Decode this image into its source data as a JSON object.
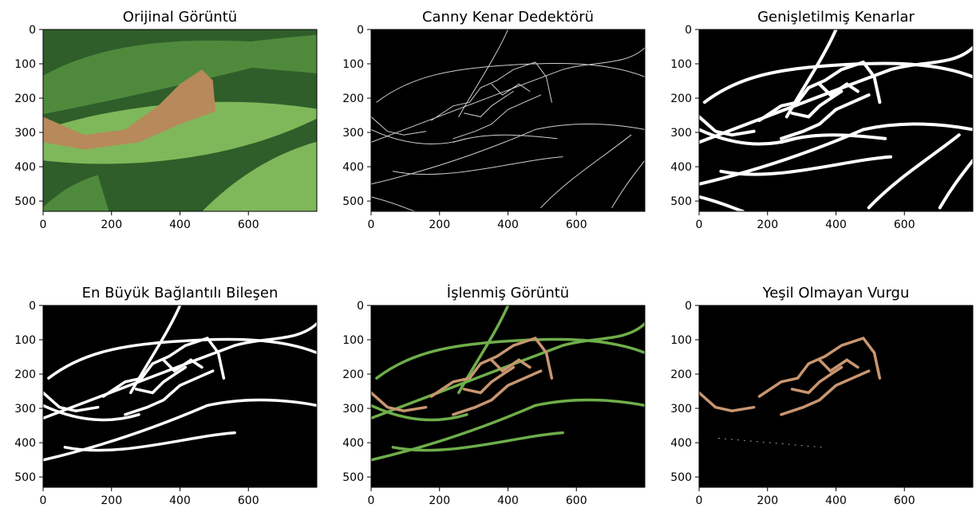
{
  "figure": {
    "panels": [
      {
        "title": "Orijinal Görüntü",
        "kind": "original"
      },
      {
        "title": "Canny Kenar Dedektörü",
        "kind": "canny"
      },
      {
        "title": "Genişletilmiş Kenarlar",
        "kind": "dilated"
      },
      {
        "title": "En Büyük Bağlantılı Bileşen",
        "kind": "largest"
      },
      {
        "title": "İşlenmiş Görüntü",
        "kind": "processed"
      },
      {
        "title": "Yeşil Olmayan Vurgu",
        "kind": "nongreen"
      }
    ],
    "x_ticks": [
      0,
      200,
      400,
      600
    ],
    "y_ticks": [
      0,
      100,
      200,
      300,
      400,
      500
    ],
    "x_range": [
      0,
      800
    ],
    "y_range": [
      0,
      530
    ]
  },
  "colors": {
    "leaf_dark": "#2f5e2a",
    "leaf_mid": "#4f8a3c",
    "leaf_light": "#7fb85a",
    "brown": "#b8895a",
    "edge_white": "#ffffff",
    "edge_green": "#6fae4a",
    "edge_brown": "#c99670",
    "background": "#000000"
  }
}
